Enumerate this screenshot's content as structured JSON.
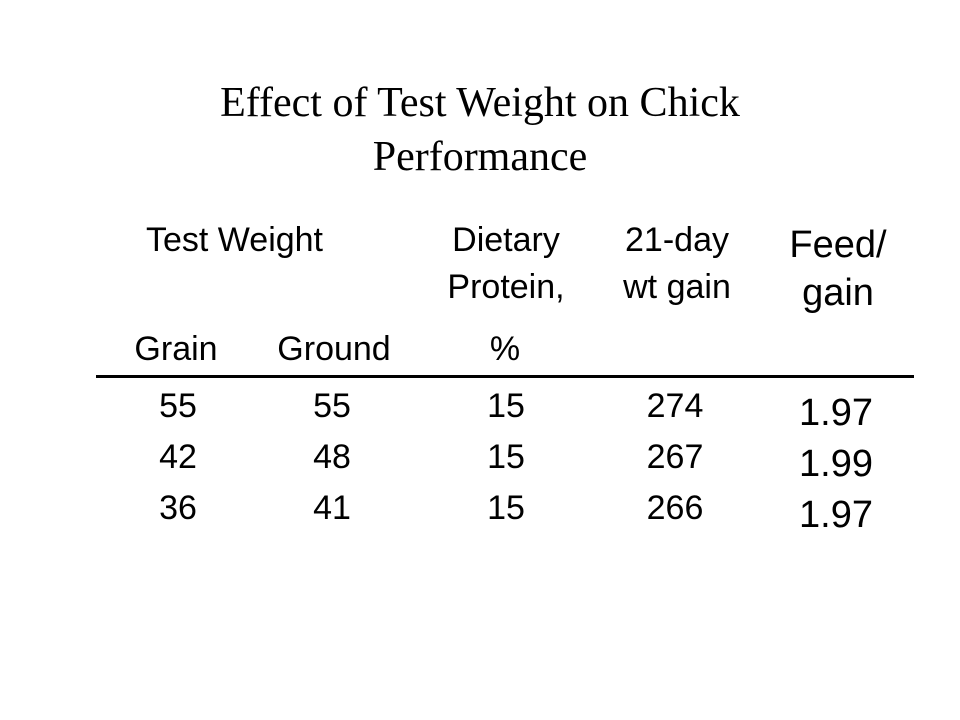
{
  "title": {
    "line1": "Effect of Test Weight on Chick",
    "line2": "Performance"
  },
  "table": {
    "group_headers": {
      "test_weight": "Test Weight",
      "protein_line1": "Dietary",
      "protein_line2": "Protein,",
      "gain_line1": "21-day",
      "gain_line2": "wt gain",
      "feed_line1": "Feed/",
      "feed_line2": "gain"
    },
    "sub_headers": {
      "grain": "Grain",
      "ground": "Ground",
      "percent": "%"
    },
    "rows": [
      {
        "grain": "55",
        "ground": "55",
        "protein": "15",
        "gain": "274",
        "feed_gain": "1.97"
      },
      {
        "grain": "42",
        "ground": "48",
        "protein": "15",
        "gain": "267",
        "feed_gain": "1.99"
      },
      {
        "grain": "36",
        "ground": "41",
        "protein": "15",
        "gain": "266",
        "feed_gain": "1.97"
      }
    ]
  }
}
